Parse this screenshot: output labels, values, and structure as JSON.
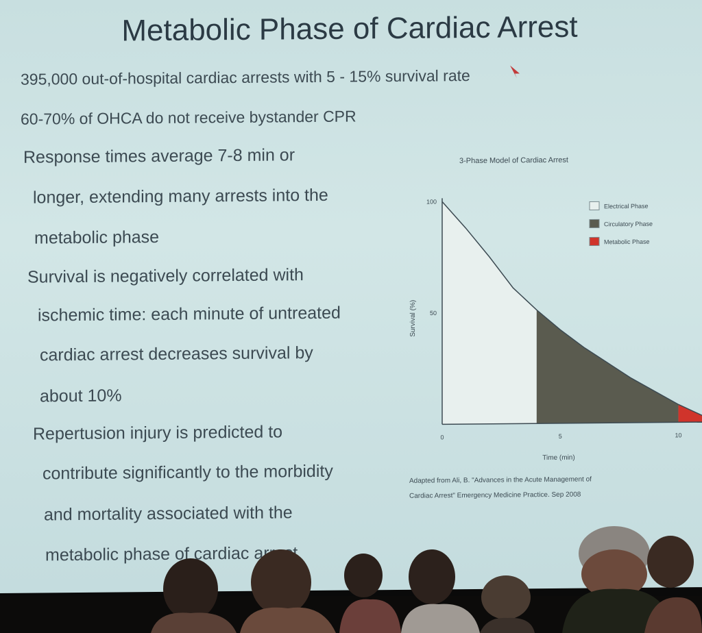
{
  "slide": {
    "title": "Metabolic Phase of Cardiac Arrest",
    "lines": [
      "395,000 out-of-hospital cardiac arrests with 5 - 15% survival rate",
      "60-70% of OHCA do not receive bystander CPR",
      "Response times average 7-8 min or",
      "longer, extending many arrests into the",
      "metabolic phase",
      "Survival is negatively correlated with",
      "ischemic time: each minute of untreated",
      "cardiac arrest decreases survival by",
      "about 10%",
      "Repertusion injury is predicted to",
      "contribute significantly to the morbidity",
      "and mortality associated with the",
      "metabolic phase of cardiac arrest"
    ]
  },
  "chart_data": {
    "type": "area",
    "title": "3-Phase Model of Cardiac Arrest",
    "xlabel": "Time (min)",
    "ylabel": "Survival (%)",
    "xlim": [
      0,
      11
    ],
    "ylim": [
      0,
      100
    ],
    "x_ticks": [
      "0",
      "5",
      "10"
    ],
    "y_ticks": [
      "100",
      "50"
    ],
    "curve": {
      "x": [
        0,
        1,
        2,
        3,
        4,
        5,
        6,
        7,
        8,
        9,
        10,
        11
      ],
      "y": [
        100,
        88,
        75,
        61,
        51,
        42,
        34,
        27,
        20,
        14,
        8,
        3
      ]
    },
    "phases": [
      {
        "name": "Electrical Phase",
        "x_range": [
          0,
          4
        ],
        "color": "#e8f0ee"
      },
      {
        "name": "Circulatory Phase",
        "x_range": [
          4,
          10
        ],
        "color": "#5a5b4f"
      },
      {
        "name": "Metabolic Phase",
        "x_range": [
          10,
          11
        ],
        "color": "#d0342b"
      }
    ],
    "legend": [
      "Electrical Phase",
      "Circulatory Phase",
      "Metabolic Phase"
    ],
    "legend_placement": "top-right",
    "citation_lines": [
      "Adapted from Ali, B. \"Advances in the Acute Management of",
      "Cardiac Arrest\" Emergency Medicine Practice. Sep 2008"
    ]
  }
}
